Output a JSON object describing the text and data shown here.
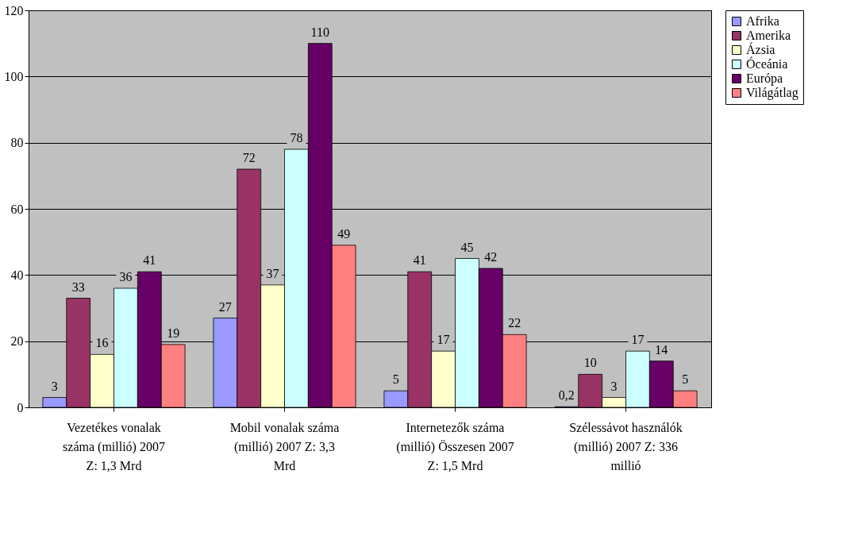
{
  "chart_data": {
    "type": "bar",
    "categories": [
      "Vezetékes vonalak száma (millió)  2007 Z: 1,3 Mrd",
      "Mobil vonalak száma (millió) 2007 Z: 3,3 Mrd",
      "Internetezők száma (millió) Összesen 2007 Z: 1,5 Mrd",
      "Szélessávot használók (millió) 2007 Z: 336 millió"
    ],
    "series": [
      {
        "name": "Afrika",
        "color": "#9999ff",
        "values": [
          3,
          27,
          5,
          0.2
        ],
        "value_labels": [
          "3",
          "27",
          "5",
          "0,2"
        ]
      },
      {
        "name": "Amerika",
        "color": "#993366",
        "values": [
          33,
          72,
          41,
          10
        ],
        "value_labels": [
          "33",
          "72",
          "41",
          "10"
        ]
      },
      {
        "name": "Ázsia",
        "color": "#ffffcc",
        "values": [
          16,
          37,
          17,
          3
        ],
        "value_labels": [
          "16",
          "37",
          "17",
          "3"
        ]
      },
      {
        "name": "Óceánia",
        "color": "#ccffff",
        "values": [
          36,
          78,
          45,
          17
        ],
        "value_labels": [
          "36",
          "78",
          "45",
          "17"
        ]
      },
      {
        "name": "Európa",
        "color": "#660066",
        "values": [
          41,
          110,
          42,
          14
        ],
        "value_labels": [
          "41",
          "110",
          "42",
          "14"
        ]
      },
      {
        "name": "Világátlag",
        "color": "#ff8080",
        "values": [
          19,
          49,
          22,
          5
        ],
        "value_labels": [
          "19",
          "49",
          "22",
          "5"
        ]
      }
    ],
    "ylim": [
      0,
      120
    ],
    "yticks": [
      0,
      20,
      40,
      60,
      80,
      100,
      120
    ],
    "grid": "y",
    "legend": "right"
  }
}
